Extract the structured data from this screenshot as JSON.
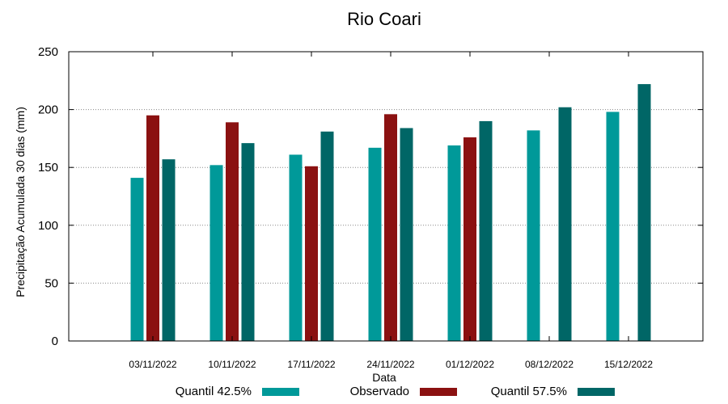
{
  "chart_data": {
    "type": "bar",
    "title": "Rio Coari",
    "xlabel": "Data",
    "ylabel": "Precipitação Acumulada 30 dias (mm)",
    "ylim": [
      0,
      250
    ],
    "yticks": [
      0,
      50,
      100,
      150,
      200,
      250
    ],
    "grid": true,
    "legend_position": "bottom",
    "categories": [
      "03/11/2022",
      "10/11/2022",
      "17/11/2022",
      "24/11/2022",
      "01/12/2022",
      "08/12/2022",
      "15/12/2022"
    ],
    "series": [
      {
        "name": "Quantil 42.5%",
        "color": "#009999",
        "values": [
          141,
          152,
          161,
          167,
          169,
          182,
          198
        ]
      },
      {
        "name": "Observado",
        "color": "#8b1111",
        "values": [
          195,
          189,
          151,
          196,
          176,
          null,
          null
        ]
      },
      {
        "name": "Quantil 57.5%",
        "color": "#006666",
        "values": [
          157,
          171,
          181,
          184,
          190,
          202,
          222
        ]
      }
    ]
  }
}
